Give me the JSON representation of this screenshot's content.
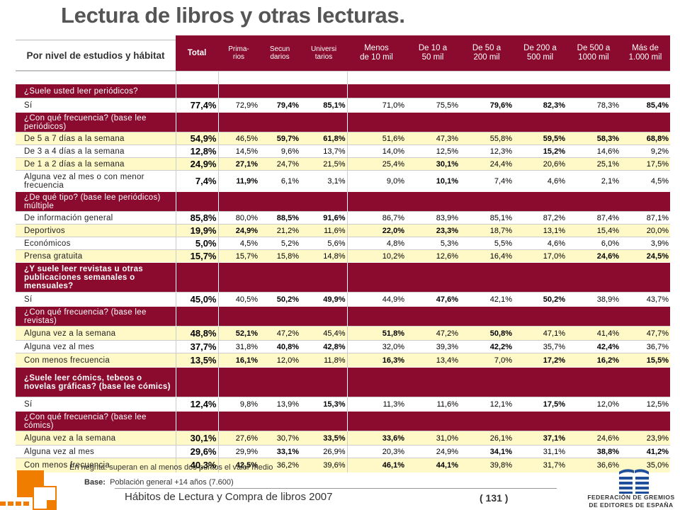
{
  "title": "Lectura de libros y otras lecturas.",
  "stub_header": "Por nivel de estudios y hábitat",
  "columns": [
    "Total",
    "Prima-\nrios",
    "Secun\ndarios",
    "Universi\ntarios",
    "Menos\nde 10 mil",
    "De 10 a\n50 mil",
    "De 50 a\n200 mil",
    "De 200 a\n500 mil",
    "De 500 a\n1000 mil",
    "Más de\n1.000 mil"
  ],
  "rows": [
    {
      "kind": "blank",
      "h": 18
    },
    {
      "kind": "q",
      "label": "¿Suele usted leer periódicos?",
      "h": 20
    },
    {
      "kind": "d",
      "bg": "white",
      "label": "Sí",
      "h": 20,
      "total": "77,4%",
      "v": [
        "72,9%",
        "79,4%",
        "85,1%",
        "71,0%",
        "75,5%",
        "79,6%",
        "82,3%",
        "78,3%",
        "85,4%"
      ],
      "bold": [
        false,
        true,
        true,
        false,
        false,
        true,
        true,
        false,
        true
      ]
    },
    {
      "kind": "q",
      "label": "¿Con qué frecuencia? (base lee periódicos)",
      "h": 28
    },
    {
      "kind": "d",
      "bg": "yellow",
      "label": "De 5 a 7 días a la semana",
      "h": 18,
      "total": "54,9%",
      "v": [
        "46,5%",
        "59,7%",
        "61,8%",
        "51,6%",
        "47,3%",
        "55,8%",
        "59,5%",
        "58,3%",
        "68,8%"
      ],
      "bold": [
        false,
        true,
        true,
        false,
        false,
        false,
        true,
        true,
        true
      ]
    },
    {
      "kind": "d",
      "bg": "white",
      "label": "De 3 a 4 días a la semana",
      "h": 18,
      "total": "12,8%",
      "v": [
        "14,5%",
        "9,6%",
        "13,7%",
        "14,0%",
        "12,5%",
        "12,3%",
        "15,2%",
        "14,6%",
        "9,2%"
      ],
      "bold": [
        false,
        false,
        false,
        false,
        false,
        false,
        true,
        false,
        false
      ]
    },
    {
      "kind": "d",
      "bg": "yellow",
      "label": "De 1 a 2 días a la semana",
      "h": 18,
      "total": "24,9%",
      "v": [
        "27,1%",
        "24,7%",
        "21,5%",
        "25,4%",
        "30,1%",
        "24,4%",
        "20,6%",
        "25,1%",
        "17,5%"
      ],
      "bold": [
        true,
        false,
        false,
        false,
        true,
        false,
        false,
        false,
        false
      ]
    },
    {
      "kind": "d",
      "bg": "white",
      "label": "Alguna vez al mes o con menor frecuencia",
      "h": 30,
      "total": "7,4%",
      "v": [
        "11,9%",
        "6,1%",
        "3,1%",
        "9,0%",
        "10,1%",
        "7,4%",
        "4,6%",
        "2,1%",
        "4,5%"
      ],
      "bold": [
        true,
        false,
        false,
        false,
        true,
        false,
        false,
        false,
        false
      ]
    },
    {
      "kind": "q",
      "label": "¿De qué tipo? (base lee periódicos) múltiple",
      "h": 28
    },
    {
      "kind": "d",
      "bg": "white",
      "label": "De información general",
      "h": 18,
      "total": "85,8%",
      "v": [
        "80,0%",
        "88,5%",
        "91,6%",
        "86,7%",
        "83,9%",
        "85,1%",
        "87,2%",
        "87,4%",
        "87,1%"
      ],
      "bold": [
        false,
        true,
        true,
        false,
        false,
        false,
        false,
        false,
        false
      ]
    },
    {
      "kind": "d",
      "bg": "yellow",
      "label": "Deportivos",
      "h": 18,
      "total": "19,9%",
      "v": [
        "24,9%",
        "21,2%",
        "11,6%",
        "22,0%",
        "23,3%",
        "18,7%",
        "13,1%",
        "15,4%",
        "20,0%"
      ],
      "bold": [
        true,
        false,
        false,
        true,
        true,
        false,
        false,
        false,
        false
      ]
    },
    {
      "kind": "d",
      "bg": "white",
      "label": "Económicos",
      "h": 18,
      "total": "5,0%",
      "v": [
        "4,5%",
        "5,2%",
        "5,6%",
        "4,8%",
        "5,3%",
        "5,5%",
        "4,6%",
        "6,0%",
        "3,9%"
      ],
      "bold": [
        false,
        false,
        false,
        false,
        false,
        false,
        false,
        false,
        false
      ]
    },
    {
      "kind": "d",
      "bg": "yellow",
      "label": "Prensa gratuita",
      "h": 18,
      "total": "15,7%",
      "v": [
        "15,7%",
        "15,8%",
        "14,8%",
        "10,2%",
        "12,6%",
        "16,4%",
        "17,0%",
        "24,6%",
        "24,5%"
      ],
      "bold": [
        false,
        false,
        false,
        false,
        false,
        false,
        false,
        true,
        true
      ]
    },
    {
      "kind": "q",
      "label": "¿Y suele leer revistas u otras publicaciones semanales o mensuales?",
      "h": 42,
      "qbold": true
    },
    {
      "kind": "d",
      "bg": "white",
      "label": "Sí",
      "h": 20,
      "total": "45,0%",
      "v": [
        "40,5%",
        "50,2%",
        "49,9%",
        "44,9%",
        "47,6%",
        "42,1%",
        "50,2%",
        "38,9%",
        "43,7%"
      ],
      "bold": [
        false,
        true,
        true,
        false,
        true,
        false,
        true,
        false,
        false
      ]
    },
    {
      "kind": "q",
      "label": "¿Con qué frecuencia? (base lee revistas)",
      "h": 28
    },
    {
      "kind": "d",
      "bg": "yellow",
      "label": "Alguna vez a la semana",
      "h": 20,
      "total": "48,8%",
      "v": [
        "52,1%",
        "47,2%",
        "45,4%",
        "51,8%",
        "47,2%",
        "50,8%",
        "47,1%",
        "41,4%",
        "47,7%"
      ],
      "bold": [
        true,
        false,
        false,
        true,
        false,
        true,
        false,
        false,
        false
      ]
    },
    {
      "kind": "d",
      "bg": "white",
      "label": "Alguna vez al mes",
      "h": 18,
      "total": "37,7%",
      "v": [
        "31,8%",
        "40,8%",
        "42,8%",
        "32,0%",
        "39,3%",
        "42,2%",
        "35,7%",
        "42,4%",
        "36,7%"
      ],
      "bold": [
        false,
        true,
        true,
        false,
        false,
        true,
        false,
        true,
        false
      ]
    },
    {
      "kind": "d",
      "bg": "yellow",
      "label": "Con menos frecuencia",
      "h": 20,
      "total": "13,5%",
      "v": [
        "16,1%",
        "12,0%",
        "11,8%",
        "16,3%",
        "13,4%",
        "7,0%",
        "17,2%",
        "16,2%",
        "15,5%"
      ],
      "bold": [
        true,
        false,
        false,
        true,
        false,
        false,
        true,
        true,
        true
      ]
    },
    {
      "kind": "q",
      "label": "¿Suele leer cómics, tebeos o novelas gráficas? (base lee cómics)",
      "h": 42,
      "qbold": true
    },
    {
      "kind": "d",
      "bg": "white",
      "label": "Sí",
      "h": 20,
      "total": "12,4%",
      "v": [
        "9,8%",
        "13,9%",
        "15,3%",
        "11,3%",
        "11,6%",
        "12,1%",
        "17,5%",
        "12,0%",
        "12,5%"
      ],
      "bold": [
        false,
        false,
        true,
        false,
        false,
        false,
        true,
        false,
        false
      ]
    },
    {
      "kind": "q",
      "label": "¿Con qué frecuencia? (base lee cómics)",
      "h": 28
    },
    {
      "kind": "d",
      "bg": "yellow",
      "label": "Alguna vez a la semana",
      "h": 20,
      "total": "30,1%",
      "v": [
        "27,6%",
        "30,7%",
        "33,5%",
        "33,6%",
        "31,0%",
        "26,1%",
        "37,1%",
        "24,6%",
        "23,9%"
      ],
      "bold": [
        false,
        false,
        true,
        true,
        false,
        false,
        true,
        false,
        false
      ]
    },
    {
      "kind": "d",
      "bg": "white",
      "label": "Alguna vez al mes",
      "h": 18,
      "total": "29,6%",
      "v": [
        "29,9%",
        "33,1%",
        "26,9%",
        "20,3%",
        "24,9%",
        "34,1%",
        "31,1%",
        "38,8%",
        "41,2%"
      ],
      "bold": [
        false,
        true,
        false,
        false,
        false,
        true,
        false,
        true,
        true
      ]
    },
    {
      "kind": "d",
      "bg": "yellow",
      "label": "Con menos frecuencia",
      "h": 20,
      "total": "40,3%",
      "v": [
        "42,5%",
        "36,2%",
        "39,6%",
        "46,1%",
        "44,1%",
        "39,8%",
        "31,7%",
        "36,6%",
        "35,0%"
      ],
      "bold": [
        true,
        false,
        false,
        true,
        true,
        false,
        false,
        false,
        false
      ]
    }
  ],
  "note": "En negrita: superan en al menos dos puntos el valor medio",
  "base_label": "Base:",
  "base_value": "Población general +14 años (7.600)",
  "footer": "Hábitos de Lectura y Compra de libros 2007",
  "page": "( 131 )",
  "org_line1": "FEDERACIÓN DE GREMIOS",
  "org_line2": "DE EDITORES DE ESPAÑA",
  "colors": {
    "maroon": "#8b0b2e",
    "yellow": "#fff9c8",
    "orange": "#f07d00",
    "blue": "#1f4e9a"
  }
}
